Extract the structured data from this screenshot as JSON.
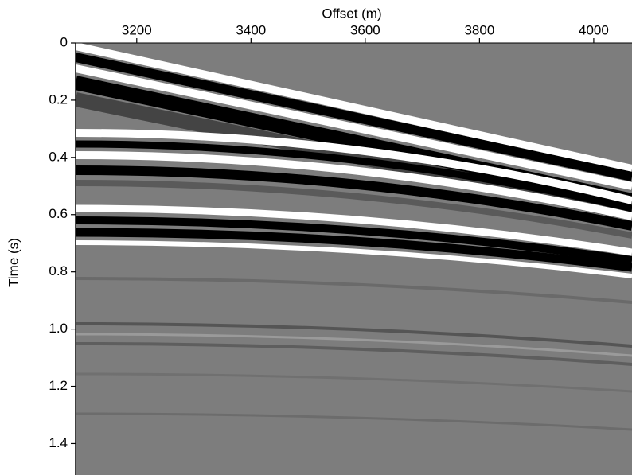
{
  "chart_data": {
    "type": "image",
    "x_label": "Offset (m)",
    "y_label": "Time (s)",
    "xlim": [
      3093,
      4067
    ],
    "xticks": [
      3200,
      3400,
      3600,
      3800,
      4000
    ],
    "ylim": [
      0,
      1.51
    ],
    "y_inverted": true,
    "yticks": [
      0,
      0.2,
      0.4,
      0.6,
      0.8,
      {
        "value": 1,
        "label": "1.0"
      },
      1.2,
      1.4
    ]
  }
}
